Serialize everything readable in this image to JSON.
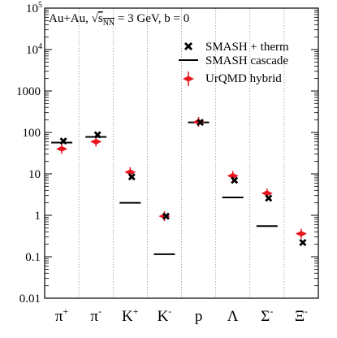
{
  "chart_data": {
    "type": "scatter",
    "header": {
      "system": "Au+Au, ",
      "sqrt_symbol": "√",
      "s_letter": "s",
      "s_subscript": "NN",
      "energy": " = 3 GeV, b = 0"
    },
    "y_scale": "log",
    "ylim": [
      0.01,
      100000
    ],
    "y_ticks": [
      {
        "value": 0.01,
        "label": "0.01"
      },
      {
        "value": 0.1,
        "label": "0.1"
      },
      {
        "value": 1,
        "label": "1"
      },
      {
        "value": 10,
        "label": "10"
      },
      {
        "value": 100,
        "label": "100"
      },
      {
        "value": 1000,
        "label": "1000"
      },
      {
        "value": 10000,
        "base": "10",
        "exp": "4"
      },
      {
        "value": 100000,
        "base": "10",
        "exp": "5"
      }
    ],
    "categories": [
      {
        "base": "π",
        "sup": "+"
      },
      {
        "base": "π",
        "sup": "-"
      },
      {
        "base": "K",
        "sup": "+"
      },
      {
        "base": "K",
        "sup": "-"
      },
      {
        "base": "p",
        "sup": ""
      },
      {
        "base": "Λ",
        "sup": ""
      },
      {
        "base": "Σ",
        "sup": "-"
      },
      {
        "base": "Ξ",
        "sup": "-"
      }
    ],
    "grid": "vertical dotted separators between categories",
    "legend": {
      "placement": "top-right",
      "entries": [
        {
          "label": "SMASH + therm",
          "marker": "x-cross"
        },
        {
          "label": "SMASH cascade",
          "marker": "horizontal-line"
        },
        {
          "label": "UrQMD hybrid",
          "marker": "red-diamond-errorbar"
        }
      ]
    },
    "series": [
      {
        "name": "SMASH + therm",
        "values": [
          62,
          88,
          8.5,
          0.95,
          175,
          7.0,
          2.6,
          0.22
        ]
      },
      {
        "name": "SMASH cascade",
        "values": [
          57,
          78,
          2.0,
          0.115,
          175,
          2.7,
          0.55,
          null
        ]
      },
      {
        "name": "UrQMD hybrid",
        "values": [
          40,
          60,
          11,
          0.95,
          180,
          9.0,
          3.4,
          0.36
        ]
      }
    ],
    "colors": {
      "urqmd": "#e8141e",
      "smash": "#000000"
    }
  }
}
